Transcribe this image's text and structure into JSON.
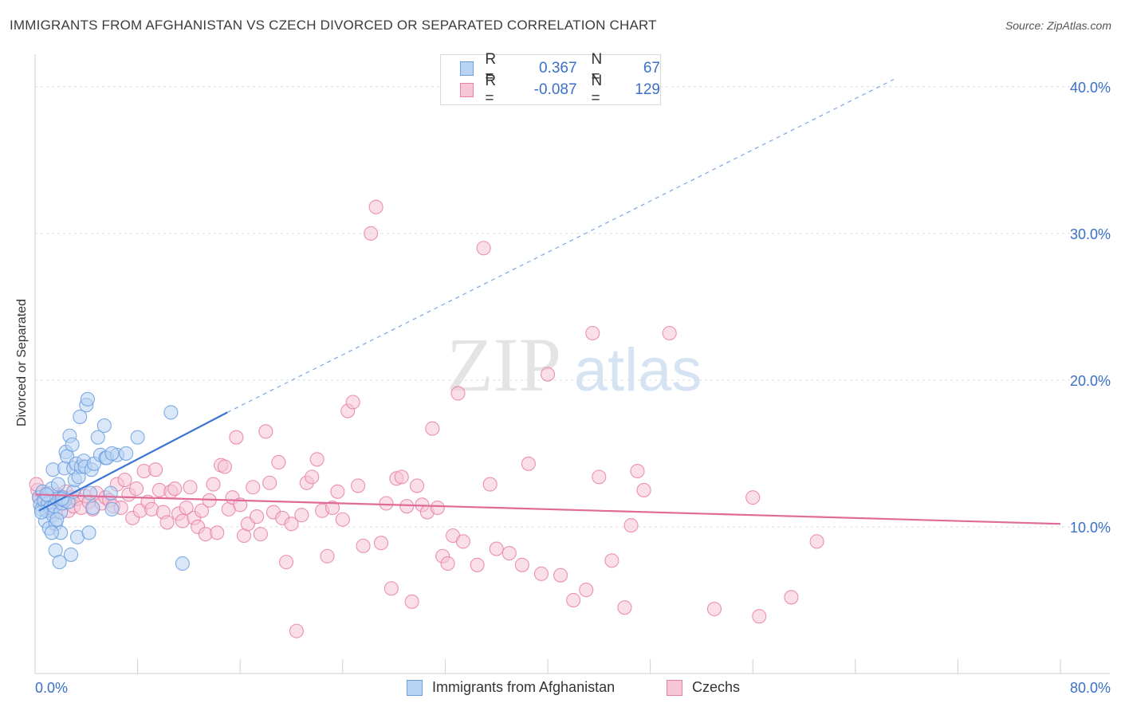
{
  "header": {
    "title": "IMMIGRANTS FROM AFGHANISTAN VS CZECH DIVORCED OR SEPARATED CORRELATION CHART",
    "source": "Source: ZipAtlas.com"
  },
  "watermark": {
    "zip": "ZIP",
    "atlas": "atlas"
  },
  "legend": {
    "rows": [
      {
        "r_label": "R =",
        "r_value": "0.367",
        "n_label": "N =",
        "n_value": "67",
        "color": "#6a9fdf",
        "fill": "#b9d3f2"
      },
      {
        "r_label": "R =",
        "r_value": "-0.087",
        "n_label": "N =",
        "n_value": "129",
        "color": "#e87fa5",
        "fill": "#f6c5d6"
      }
    ]
  },
  "bottom_legend": [
    {
      "label": "Immigrants from Afghanistan",
      "color": "#6a9fdf",
      "fill": "#b9d3f2"
    },
    {
      "label": "Czechs",
      "color": "#e87fa5",
      "fill": "#f6c5d6"
    }
  ],
  "chart_data": {
    "type": "scatter",
    "title": "IMMIGRANTS FROM AFGHANISTAN VS CZECH DIVORCED OR SEPARATED CORRELATION CHART",
    "xlabel": "",
    "ylabel": "Divorced or Separated",
    "xlim": [
      0,
      80
    ],
    "ylim": [
      0,
      42
    ],
    "x_tick_labels": [
      "0.0%",
      "80.0%"
    ],
    "y_ticks": [
      10,
      20,
      30,
      40
    ],
    "y_tick_labels": [
      "10.0%",
      "20.0%",
      "30.0%",
      "40.0%"
    ],
    "grid": true,
    "legend_position": "top-center",
    "series": [
      {
        "name": "Immigrants from Afghanistan",
        "color": "#3a75d4",
        "fill": "#b9d3f2",
        "stroke": "#6a9fdf",
        "points": [
          [
            0.3,
            12.0
          ],
          [
            0.4,
            11.5
          ],
          [
            0.5,
            11.2
          ],
          [
            0.6,
            12.4
          ],
          [
            0.7,
            11.8
          ],
          [
            0.8,
            10.4
          ],
          [
            0.9,
            11.1
          ],
          [
            1.0,
            12.1
          ],
          [
            1.0,
            11.6
          ],
          [
            1.1,
            9.9
          ],
          [
            1.2,
            11.3
          ],
          [
            1.3,
            12.6
          ],
          [
            1.4,
            10.8
          ],
          [
            1.4,
            13.9
          ],
          [
            1.5,
            11.4
          ],
          [
            1.6,
            8.4
          ],
          [
            1.6,
            10.2
          ],
          [
            1.7,
            11.9
          ],
          [
            1.8,
            12.9
          ],
          [
            1.9,
            7.6
          ],
          [
            2.0,
            11.0
          ],
          [
            2.0,
            9.6
          ],
          [
            2.1,
            11.6
          ],
          [
            2.2,
            12.0
          ],
          [
            2.3,
            11.8
          ],
          [
            2.3,
            14.0
          ],
          [
            2.4,
            15.1
          ],
          [
            2.5,
            14.8
          ],
          [
            2.6,
            11.7
          ],
          [
            2.7,
            16.2
          ],
          [
            2.8,
            8.1
          ],
          [
            2.9,
            15.6
          ],
          [
            3.0,
            14.0
          ],
          [
            3.0,
            12.4
          ],
          [
            3.1,
            13.2
          ],
          [
            3.2,
            14.3
          ],
          [
            3.3,
            9.3
          ],
          [
            3.4,
            13.4
          ],
          [
            3.5,
            17.5
          ],
          [
            3.6,
            14.1
          ],
          [
            3.8,
            14.5
          ],
          [
            3.9,
            14.1
          ],
          [
            4.0,
            18.3
          ],
          [
            4.1,
            18.7
          ],
          [
            4.2,
            9.6
          ],
          [
            4.3,
            12.3
          ],
          [
            4.4,
            13.9
          ],
          [
            4.5,
            11.3
          ],
          [
            4.6,
            14.3
          ],
          [
            4.9,
            16.1
          ],
          [
            5.1,
            14.9
          ],
          [
            5.4,
            16.9
          ],
          [
            5.5,
            14.7
          ],
          [
            5.6,
            14.7
          ],
          [
            5.9,
            12.3
          ],
          [
            6.0,
            11.2
          ],
          [
            6.4,
            14.9
          ],
          [
            6.0,
            15.0
          ],
          [
            7.1,
            15.0
          ],
          [
            8.0,
            16.1
          ],
          [
            10.6,
            17.8
          ],
          [
            11.5,
            7.5
          ],
          [
            0.5,
            11.0
          ],
          [
            0.9,
            12.2
          ],
          [
            1.3,
            9.6
          ],
          [
            1.7,
            10.5
          ],
          [
            2.1,
            11.9
          ]
        ],
        "trend": {
          "x0": 0.3,
          "y0": 11.1,
          "x1": 15.0,
          "y1": 17.8,
          "dash_x1": 67.0,
          "dash_y1": 40.5
        }
      },
      {
        "name": "Czechs",
        "color": "#e06b98",
        "fill": "#f6c5d6",
        "stroke": "#e87fa5",
        "points": [
          [
            0.2,
            12.5
          ],
          [
            0.4,
            12.0
          ],
          [
            0.6,
            11.7
          ],
          [
            0.8,
            11.4
          ],
          [
            1.0,
            12.3
          ],
          [
            1.2,
            11.9
          ],
          [
            1.4,
            11.5
          ],
          [
            1.6,
            11.0
          ],
          [
            1.8,
            12.2
          ],
          [
            2.0,
            11.8
          ],
          [
            2.2,
            11.6
          ],
          [
            2.4,
            12.4
          ],
          [
            2.6,
            11.1
          ],
          [
            2.8,
            12.0
          ],
          [
            3.0,
            11.4
          ],
          [
            3.3,
            11.9
          ],
          [
            3.6,
            11.3
          ],
          [
            3.9,
            12.1
          ],
          [
            4.2,
            11.7
          ],
          [
            4.5,
            11.2
          ],
          [
            4.8,
            12.3
          ],
          [
            5.2,
            11.6
          ],
          [
            5.5,
            12.0
          ],
          [
            5.8,
            11.8
          ],
          [
            6.1,
            11.4
          ],
          [
            6.4,
            12.9
          ],
          [
            6.7,
            11.3
          ],
          [
            7.0,
            13.2
          ],
          [
            7.3,
            12.2
          ],
          [
            7.6,
            10.6
          ],
          [
            7.9,
            12.6
          ],
          [
            8.2,
            11.1
          ],
          [
            8.5,
            13.8
          ],
          [
            8.8,
            11.7
          ],
          [
            9.1,
            11.2
          ],
          [
            9.4,
            13.9
          ],
          [
            9.7,
            12.5
          ],
          [
            10.0,
            11.0
          ],
          [
            10.3,
            10.3
          ],
          [
            10.6,
            12.4
          ],
          [
            10.9,
            12.6
          ],
          [
            11.2,
            10.9
          ],
          [
            11.5,
            10.4
          ],
          [
            11.8,
            11.3
          ],
          [
            12.1,
            12.7
          ],
          [
            12.4,
            10.6
          ],
          [
            12.7,
            10.0
          ],
          [
            13.0,
            11.1
          ],
          [
            13.3,
            9.5
          ],
          [
            13.6,
            11.8
          ],
          [
            13.9,
            12.9
          ],
          [
            14.2,
            9.6
          ],
          [
            14.5,
            14.2
          ],
          [
            14.8,
            14.1
          ],
          [
            15.1,
            11.2
          ],
          [
            15.4,
            12.0
          ],
          [
            15.7,
            16.1
          ],
          [
            16.0,
            11.5
          ],
          [
            16.3,
            9.4
          ],
          [
            16.6,
            10.2
          ],
          [
            17.0,
            12.7
          ],
          [
            17.3,
            10.7
          ],
          [
            17.6,
            9.5
          ],
          [
            18.0,
            16.5
          ],
          [
            18.3,
            13.0
          ],
          [
            18.6,
            11.0
          ],
          [
            19.0,
            14.4
          ],
          [
            19.3,
            10.6
          ],
          [
            19.6,
            7.6
          ],
          [
            20.0,
            10.2
          ],
          [
            20.4,
            2.9
          ],
          [
            20.8,
            10.8
          ],
          [
            21.2,
            13.0
          ],
          [
            21.6,
            13.4
          ],
          [
            22.0,
            14.6
          ],
          [
            22.4,
            11.1
          ],
          [
            22.8,
            8.0
          ],
          [
            23.2,
            11.3
          ],
          [
            23.6,
            12.4
          ],
          [
            24.0,
            10.5
          ],
          [
            24.4,
            17.9
          ],
          [
            24.8,
            18.5
          ],
          [
            25.2,
            12.8
          ],
          [
            25.6,
            8.7
          ],
          [
            26.2,
            30.0
          ],
          [
            26.6,
            31.8
          ],
          [
            27.0,
            8.9
          ],
          [
            27.4,
            11.6
          ],
          [
            27.8,
            5.8
          ],
          [
            28.2,
            13.3
          ],
          [
            28.6,
            13.4
          ],
          [
            29.0,
            11.4
          ],
          [
            29.4,
            4.9
          ],
          [
            29.8,
            12.8
          ],
          [
            30.2,
            11.5
          ],
          [
            30.6,
            11.0
          ],
          [
            31.0,
            16.7
          ],
          [
            31.4,
            11.3
          ],
          [
            31.8,
            8.0
          ],
          [
            32.2,
            7.5
          ],
          [
            32.6,
            9.4
          ],
          [
            33.0,
            19.1
          ],
          [
            33.4,
            9.0
          ],
          [
            34.5,
            7.4
          ],
          [
            35.0,
            29.0
          ],
          [
            35.5,
            12.9
          ],
          [
            36.0,
            8.5
          ],
          [
            37.0,
            8.2
          ],
          [
            38.0,
            7.4
          ],
          [
            38.5,
            14.3
          ],
          [
            39.5,
            6.8
          ],
          [
            40.0,
            20.4
          ],
          [
            41.0,
            6.7
          ],
          [
            42.0,
            5.0
          ],
          [
            43.0,
            5.7
          ],
          [
            43.5,
            23.2
          ],
          [
            44.0,
            13.4
          ],
          [
            45.0,
            7.7
          ],
          [
            46.0,
            4.5
          ],
          [
            46.5,
            10.1
          ],
          [
            47.0,
            13.8
          ],
          [
            47.5,
            12.5
          ],
          [
            49.5,
            23.2
          ],
          [
            53.0,
            4.4
          ],
          [
            56.0,
            12.0
          ],
          [
            56.5,
            3.9
          ],
          [
            59.0,
            5.2
          ],
          [
            61.0,
            9.0
          ],
          [
            0.1,
            12.9
          ]
        ],
        "trend": {
          "x0": 0.0,
          "y0": 12.2,
          "x1": 80.0,
          "y1": 10.2
        }
      }
    ]
  }
}
